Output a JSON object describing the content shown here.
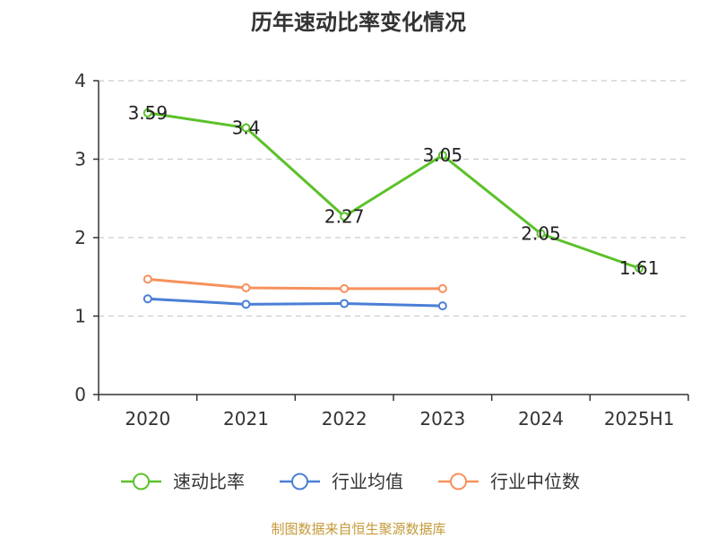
{
  "chart_data": {
    "type": "line",
    "title": "历年速动比率变化情况",
    "xlabel": "",
    "ylabel": "",
    "categories": [
      "2020",
      "2021",
      "2022",
      "2023",
      "2024",
      "2025H1"
    ],
    "ylim": [
      0,
      4
    ],
    "yticks": [
      0,
      1,
      2,
      3,
      4
    ],
    "grid": true,
    "legend": "bottom",
    "series": [
      {
        "name": "速动比率",
        "color": "#5cc12a",
        "values": [
          3.59,
          3.4,
          2.27,
          3.05,
          2.05,
          1.61
        ],
        "data_labels": true
      },
      {
        "name": "行业均值",
        "color": "#4a7fd6",
        "values": [
          1.22,
          1.15,
          1.16,
          1.13,
          null,
          null
        ],
        "data_labels": false
      },
      {
        "name": "行业中位数",
        "color": "#f6915d",
        "values": [
          1.47,
          1.36,
          1.35,
          1.35,
          null,
          null
        ],
        "data_labels": false
      }
    ]
  },
  "footer": {
    "text": "制图数据来自恒生聚源数据库",
    "color": "#c49a3a"
  },
  "axis_color": "#333333",
  "grid_color": "#cccccc"
}
